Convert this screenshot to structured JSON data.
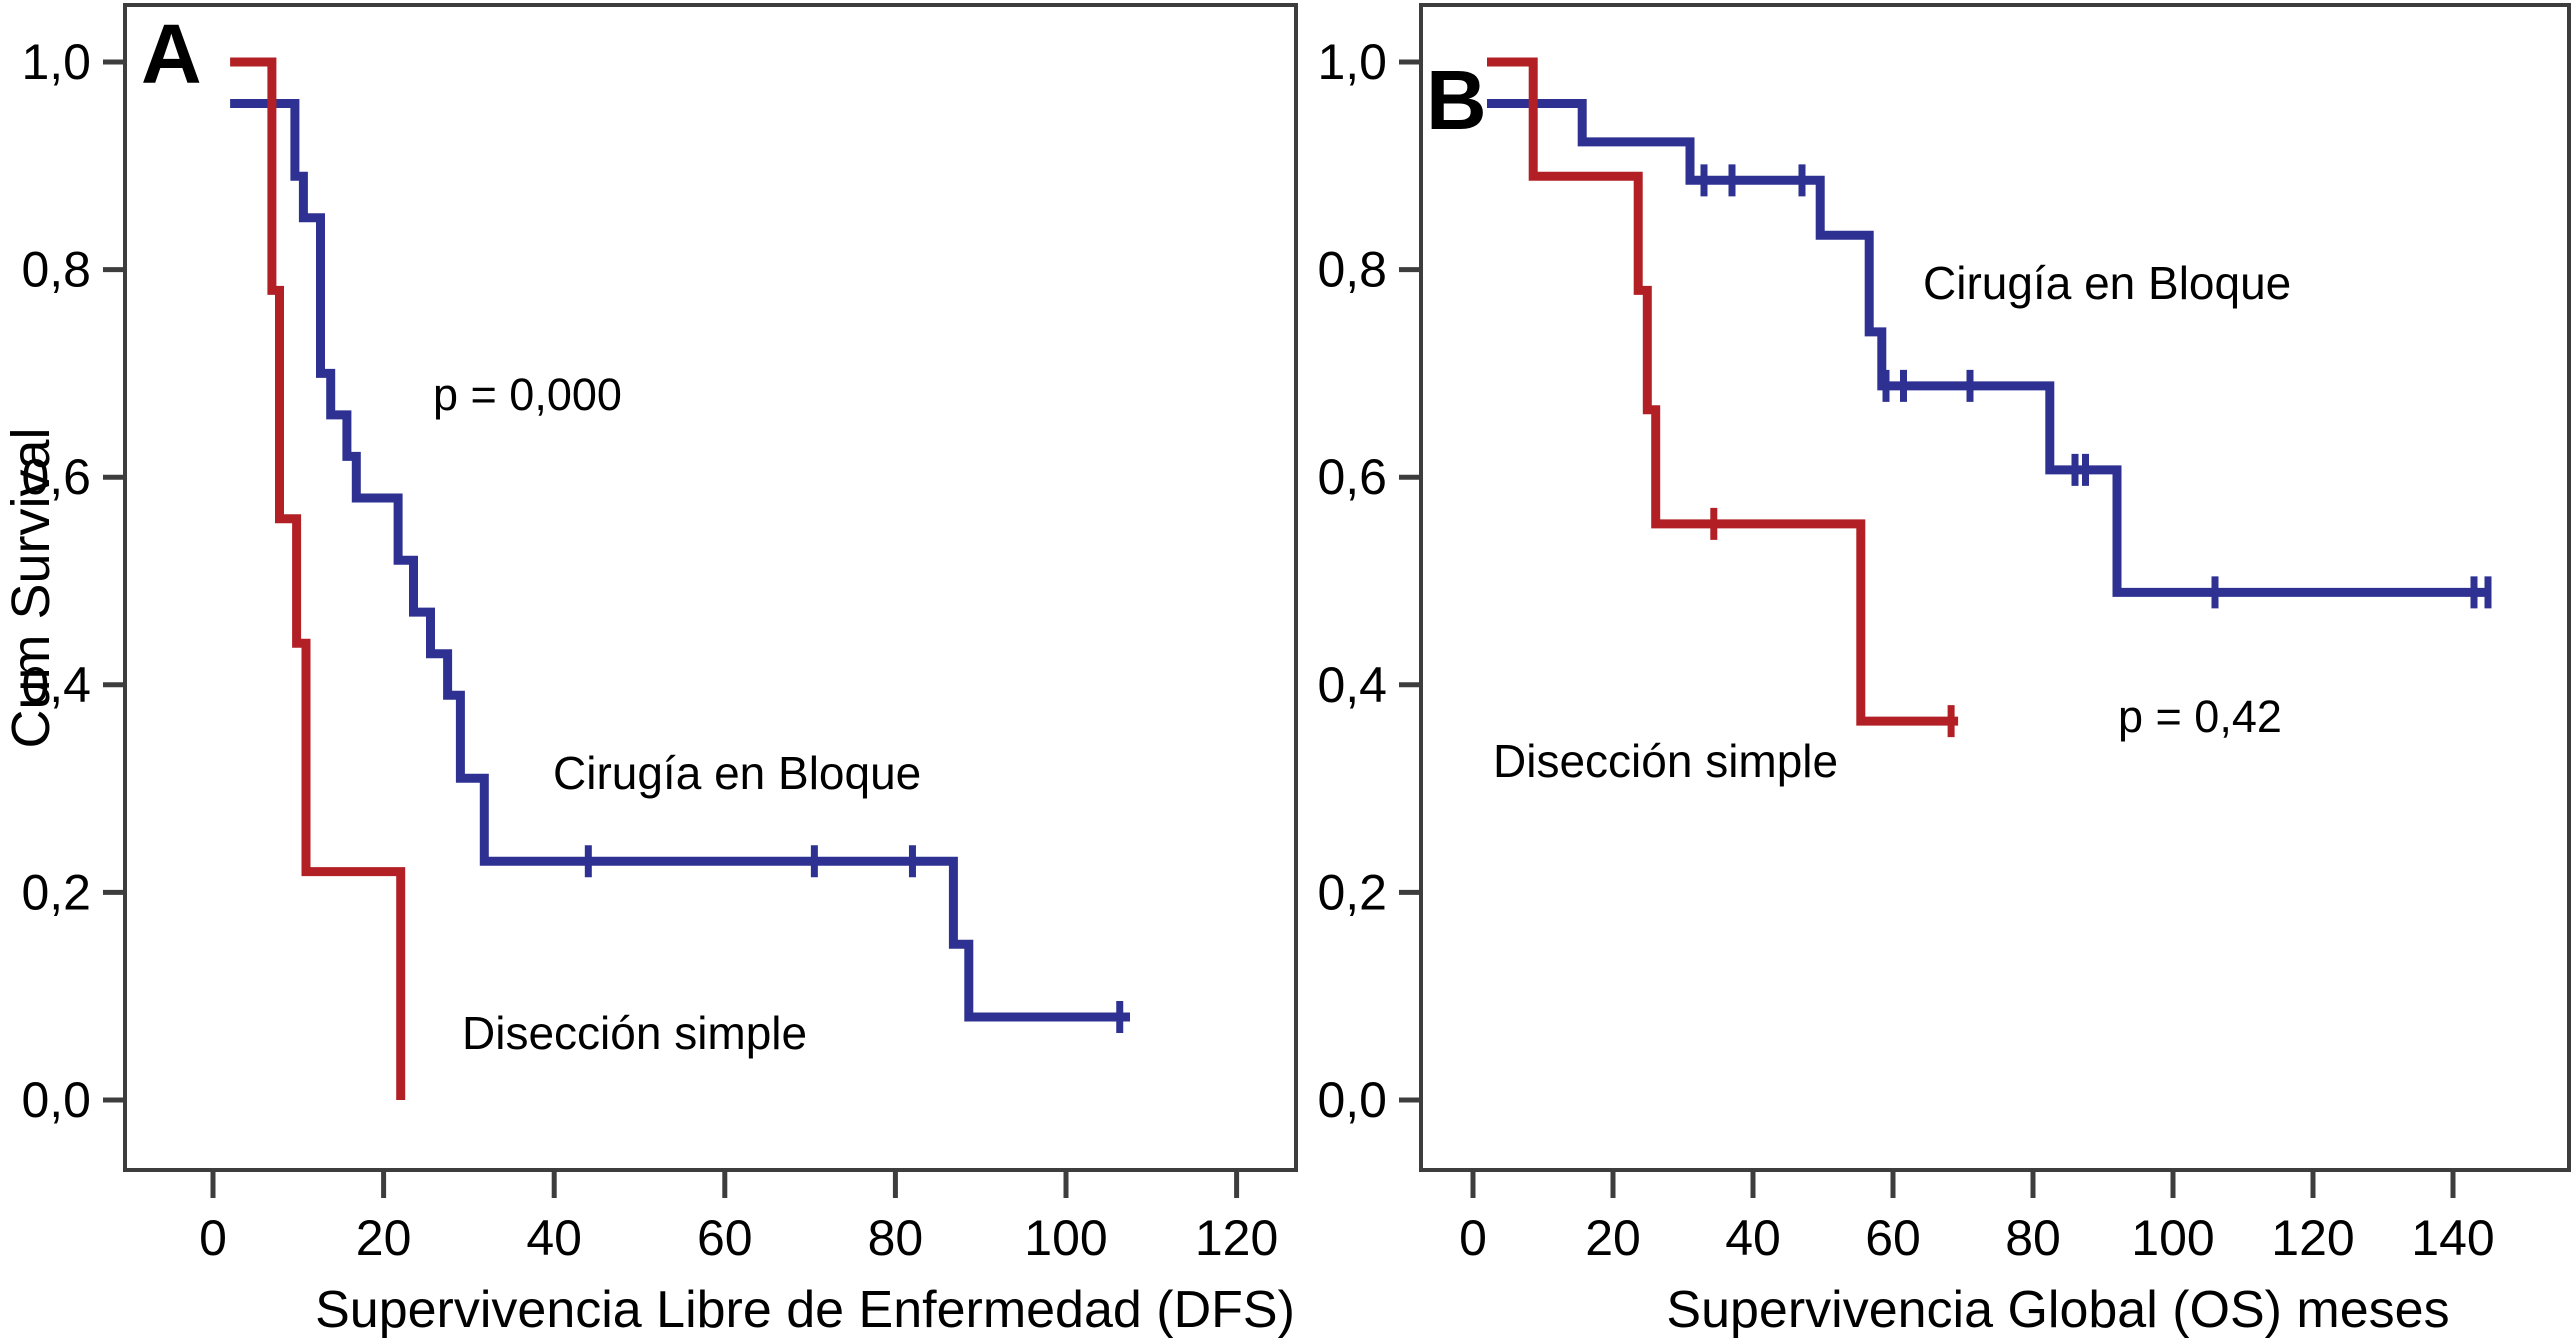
{
  "figure": {
    "background": "#ffffff",
    "colors": {
      "en_bloque_line": "#2e3192",
      "simple_line": "#b22026",
      "frame": "#3d3d3d",
      "text": "#000000"
    },
    "panel_a": {
      "letter": "A",
      "y_axis_title": "Cum Survival",
      "x_axis_title": "Supervivencia Libre de Enfermedad (DFS)",
      "p_label": "p = 0,000",
      "label_en_bloque": "Cirugía en Bloque",
      "label_simple": "Disección simple"
    },
    "panel_b": {
      "letter": "B",
      "x_axis_title": "Supervivencia Global (OS) meses",
      "p_label": "p = 0,42",
      "label_en_bloque": "Cirugía en Bloque",
      "label_simple": "Disección simple"
    }
  },
  "chart_data": [
    {
      "panel": "A",
      "type": "line",
      "subtype": "kaplan_meier_step",
      "title": "",
      "xlabel": "Supervivencia Libre de Enfermedad (DFS)",
      "ylabel": "Cum Survival",
      "annotation": "p = 0,000",
      "x_ticks": [
        0,
        20,
        40,
        60,
        80,
        100,
        120
      ],
      "y_ticks": [
        1.0,
        0.8,
        0.6,
        0.4,
        0.2,
        0.0
      ],
      "y_tick_labels": [
        "1,0",
        "0,8",
        "0,6",
        "0,4",
        "0,2",
        "0,0"
      ],
      "xlim": [
        -10,
        127
      ],
      "ylim": [
        -0.07,
        1.06
      ],
      "grid": false,
      "legend_position": "inline-annotations",
      "series": [
        {
          "name": "Cirugía en Bloque",
          "color": "#2e3192",
          "steps": [
            [
              2,
              0.96
            ],
            [
              9.6,
              0.96
            ],
            [
              9.6,
              0.89
            ],
            [
              10.6,
              0.89
            ],
            [
              10.6,
              0.85
            ],
            [
              12.6,
              0.85
            ],
            [
              12.6,
              0.7
            ],
            [
              13.8,
              0.7
            ],
            [
              13.8,
              0.66
            ],
            [
              15.7,
              0.66
            ],
            [
              15.7,
              0.62
            ],
            [
              16.8,
              0.62
            ],
            [
              16.8,
              0.58
            ],
            [
              21.7,
              0.58
            ],
            [
              21.7,
              0.52
            ],
            [
              23.5,
              0.52
            ],
            [
              23.5,
              0.47
            ],
            [
              25.5,
              0.47
            ],
            [
              25.5,
              0.43
            ],
            [
              27.5,
              0.43
            ],
            [
              27.5,
              0.39
            ],
            [
              29,
              0.39
            ],
            [
              29,
              0.31
            ],
            [
              31.8,
              0.31
            ],
            [
              31.8,
              0.23
            ],
            [
              86.8,
              0.23
            ],
            [
              86.8,
              0.15
            ],
            [
              88.6,
              0.15
            ],
            [
              88.6,
              0.08
            ],
            [
              107.5,
              0.08
            ]
          ],
          "censors": [
            [
              44,
              0.23
            ],
            [
              70.5,
              0.23
            ],
            [
              82,
              0.23
            ],
            [
              106.3,
              0.08
            ]
          ]
        },
        {
          "name": "Disección simple",
          "color": "#b22026",
          "steps": [
            [
              2,
              1.0
            ],
            [
              6.9,
              1.0
            ],
            [
              6.9,
              0.78
            ],
            [
              7.8,
              0.78
            ],
            [
              7.8,
              0.56
            ],
            [
              9.8,
              0.56
            ],
            [
              9.8,
              0.44
            ],
            [
              10.9,
              0.44
            ],
            [
              10.9,
              0.22
            ],
            [
              22,
              0.22
            ],
            [
              22,
              0.0
            ]
          ],
          "censors": []
        }
      ]
    },
    {
      "panel": "B",
      "type": "line",
      "subtype": "kaplan_meier_step",
      "title": "",
      "xlabel": "Supervivencia Global (OS) meses",
      "ylabel": "",
      "annotation": "p = 0,42",
      "x_ticks": [
        0,
        20,
        40,
        60,
        80,
        100,
        120,
        140
      ],
      "y_ticks": [
        1.0,
        0.8,
        0.6,
        0.4,
        0.2,
        0.0
      ],
      "y_tick_labels": [
        "1,0",
        "0,8",
        "0,6",
        "0,4",
        "0,2",
        "0,0"
      ],
      "xlim": [
        -8,
        157
      ],
      "ylim": [
        -0.07,
        1.06
      ],
      "grid": false,
      "legend_position": "inline-annotations",
      "series": [
        {
          "name": "Cirugía en Bloque",
          "color": "#2e3192",
          "steps": [
            [
              2,
              0.96
            ],
            [
              15.6,
              0.96
            ],
            [
              15.6,
              0.923
            ],
            [
              31,
              0.923
            ],
            [
              31,
              0.886
            ],
            [
              49.6,
              0.886
            ],
            [
              49.6,
              0.833
            ],
            [
              56.6,
              0.833
            ],
            [
              56.6,
              0.74
            ],
            [
              58.4,
              0.74
            ],
            [
              58.4,
              0.688
            ],
            [
              82.4,
              0.688
            ],
            [
              82.4,
              0.607
            ],
            [
              92,
              0.607
            ],
            [
              92,
              0.489
            ],
            [
              145.5,
              0.489
            ]
          ],
          "censors": [
            [
              33,
              0.886
            ],
            [
              37,
              0.886
            ],
            [
              47,
              0.886
            ],
            [
              59,
              0.688
            ],
            [
              61.5,
              0.688
            ],
            [
              71,
              0.688
            ],
            [
              86,
              0.607
            ],
            [
              87.5,
              0.607
            ],
            [
              106,
              0.489
            ],
            [
              143,
              0.489
            ],
            [
              145,
              0.489
            ]
          ]
        },
        {
          "name": "Disección simple",
          "color": "#b22026",
          "steps": [
            [
              2,
              1.0
            ],
            [
              8.6,
              1.0
            ],
            [
              8.6,
              0.89
            ],
            [
              23.6,
              0.89
            ],
            [
              23.6,
              0.78
            ],
            [
              24.9,
              0.78
            ],
            [
              24.9,
              0.665
            ],
            [
              26.1,
              0.665
            ],
            [
              26.1,
              0.555
            ],
            [
              55.4,
              0.555
            ],
            [
              55.4,
              0.365
            ],
            [
              69.3,
              0.365
            ]
          ],
          "censors": [
            [
              34.4,
              0.555
            ],
            [
              68.3,
              0.365
            ]
          ]
        }
      ]
    }
  ]
}
